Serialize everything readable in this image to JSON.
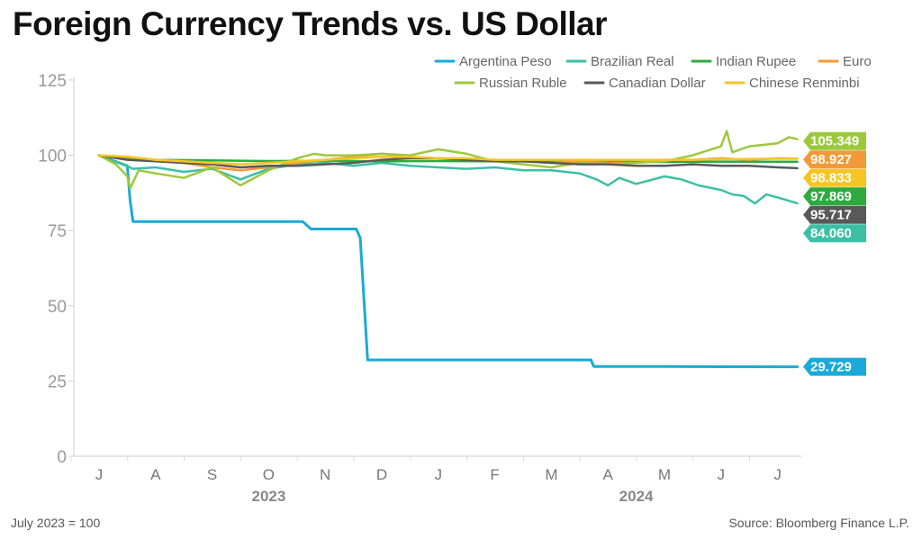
{
  "title": "Foreign Currency Trends vs. US Dollar",
  "footnote_left": "July 2023 = 100",
  "footnote_right": "Source: Bloomberg Finance L.P.",
  "chart_data": {
    "type": "line",
    "title": "Foreign Currency Trends vs. US Dollar",
    "xlabel": "",
    "ylabel": "",
    "ylim": [
      0,
      125
    ],
    "yticks": [
      0,
      25,
      50,
      75,
      100,
      125
    ],
    "x_range": [
      0,
      12.5
    ],
    "month_labels": [
      "J",
      "A",
      "S",
      "O",
      "N",
      "D",
      "J",
      "F",
      "M",
      "A",
      "M",
      "J",
      "J"
    ],
    "year_labels": [
      {
        "label": "2023",
        "month_index": 3
      },
      {
        "label": "2024",
        "month_index": 9.5
      }
    ],
    "legend_position": "top-right",
    "series": [
      {
        "name": "Argentina Peso",
        "color": "#1aa9d8",
        "end_label": "29.729",
        "end_value": 29.729,
        "x": [
          0,
          0.5,
          0.55,
          0.6,
          1,
          2,
          3,
          3.6,
          3.75,
          4.55,
          4.62,
          4.75,
          4.8,
          5,
          6,
          7,
          8,
          8.7,
          8.75,
          9,
          10,
          11,
          12,
          12.35
        ],
        "values": [
          100,
          96.5,
          85,
          78,
          78,
          78,
          78,
          78,
          75.5,
          75.5,
          72.5,
          32,
          32,
          32,
          32,
          32,
          32,
          32,
          29.8,
          29.8,
          29.8,
          29.75,
          29.73,
          29.729
        ]
      },
      {
        "name": "Brazilian Real",
        "color": "#3dbfa5",
        "end_label": "84.060",
        "end_value": 84.06,
        "x": [
          0,
          0.3,
          0.6,
          1,
          1.5,
          2,
          2.5,
          3,
          3.5,
          4,
          4.5,
          5,
          5.5,
          6,
          6.5,
          7,
          7.5,
          8,
          8.5,
          8.8,
          9,
          9.2,
          9.5,
          10,
          10.3,
          10.6,
          11,
          11.2,
          11.4,
          11.6,
          11.8,
          12,
          12.35
        ],
        "values": [
          100,
          98,
          95.5,
          96,
          94.5,
          95.5,
          92,
          95.5,
          97,
          97.5,
          96.5,
          97.5,
          96.5,
          96,
          95.5,
          96,
          95,
          95,
          94,
          92,
          90,
          92.5,
          90.5,
          93,
          92,
          90,
          88.5,
          87,
          86.5,
          84,
          87,
          86,
          84.06
        ]
      },
      {
        "name": "Indian Rupee",
        "color": "#2eaa3f",
        "end_label": "97.869",
        "end_value": 97.869,
        "x": [
          0,
          1,
          2,
          3,
          4,
          5,
          6,
          7,
          8,
          9,
          10,
          11,
          12,
          12.35
        ],
        "values": [
          100,
          98.5,
          98.3,
          98.1,
          98.2,
          98.0,
          98.1,
          98.0,
          97.9,
          97.9,
          97.8,
          97.9,
          97.85,
          97.869
        ]
      },
      {
        "name": "Euro",
        "color": "#f39a38",
        "end_label": "98.927",
        "end_value": 98.927,
        "x": [
          0,
          0.5,
          1,
          1.5,
          2,
          2.5,
          3,
          3.5,
          4,
          4.5,
          5,
          5.5,
          6,
          6.5,
          7,
          7.5,
          8,
          8.5,
          9,
          9.5,
          10,
          10.5,
          11,
          11.5,
          12,
          12.35
        ],
        "values": [
          100,
          99.5,
          98.5,
          97.5,
          96,
          95,
          96,
          97.5,
          98.5,
          99.5,
          100.5,
          99.5,
          99,
          99,
          98.5,
          98,
          97.5,
          98,
          97.5,
          97.5,
          98.5,
          98.5,
          99,
          98.5,
          99,
          98.927
        ]
      },
      {
        "name": "Russian Ruble",
        "color": "#9cc93c",
        "end_label": "105.349",
        "end_value": 105.349,
        "x": [
          0,
          0.3,
          0.5,
          0.55,
          0.7,
          1,
          1.5,
          2,
          2.5,
          3,
          3.5,
          3.8,
          4,
          4.5,
          5,
          5.5,
          6,
          6.5,
          7,
          7.5,
          8,
          8.5,
          9,
          9.5,
          10,
          10.5,
          11,
          11.1,
          11.2,
          11.5,
          12,
          12.2,
          12.35
        ],
        "values": [
          100,
          97,
          93,
          89,
          95,
          94,
          92.5,
          96,
          90,
          95,
          99,
          100.5,
          100,
          100,
          100.5,
          100,
          102,
          100.5,
          98,
          97,
          96,
          97.5,
          97,
          97.5,
          98,
          100,
          103,
          108,
          101,
          103,
          104,
          106,
          105.349
        ]
      },
      {
        "name": "Canadian Dollar",
        "color": "#595959",
        "end_label": "95.717",
        "end_value": 95.717,
        "x": [
          0,
          0.5,
          1,
          1.5,
          2,
          2.5,
          3,
          3.5,
          4,
          4.5,
          5,
          5.5,
          6,
          6.5,
          7,
          7.5,
          8,
          8.5,
          9,
          9.5,
          10,
          10.5,
          11,
          11.5,
          12,
          12.35
        ],
        "values": [
          100,
          98.5,
          98,
          97.5,
          97,
          96,
          96.5,
          96.5,
          97,
          97.5,
          98.5,
          99,
          99,
          98.5,
          98,
          98,
          97.5,
          97,
          97,
          96.5,
          96.5,
          97,
          96.5,
          96.5,
          96,
          95.717
        ]
      },
      {
        "name": "Chinese Renminbi",
        "color": "#f6c523",
        "end_label": "98.833",
        "end_value": 98.833,
        "x": [
          0,
          0.5,
          1,
          1.5,
          2,
          2.5,
          3,
          3.5,
          4,
          4.5,
          5,
          5.5,
          6,
          6.5,
          7,
          7.5,
          8,
          8.5,
          9,
          9.5,
          10,
          10.5,
          11,
          11.5,
          12,
          12.35
        ],
        "values": [
          100,
          99.5,
          98.5,
          98,
          97.5,
          97,
          97.5,
          98,
          98.5,
          99,
          99.5,
          99.5,
          99,
          99,
          98.5,
          98.5,
          98.5,
          98.5,
          98.5,
          98.5,
          98.5,
          98.5,
          98.7,
          98.8,
          98.85,
          98.833
        ]
      }
    ],
    "end_label_order": [
      "Russian Ruble",
      "Euro",
      "Chinese Renminbi",
      "Indian Rupee",
      "Canadian Dollar",
      "Brazilian Real",
      "Argentina Peso"
    ]
  }
}
